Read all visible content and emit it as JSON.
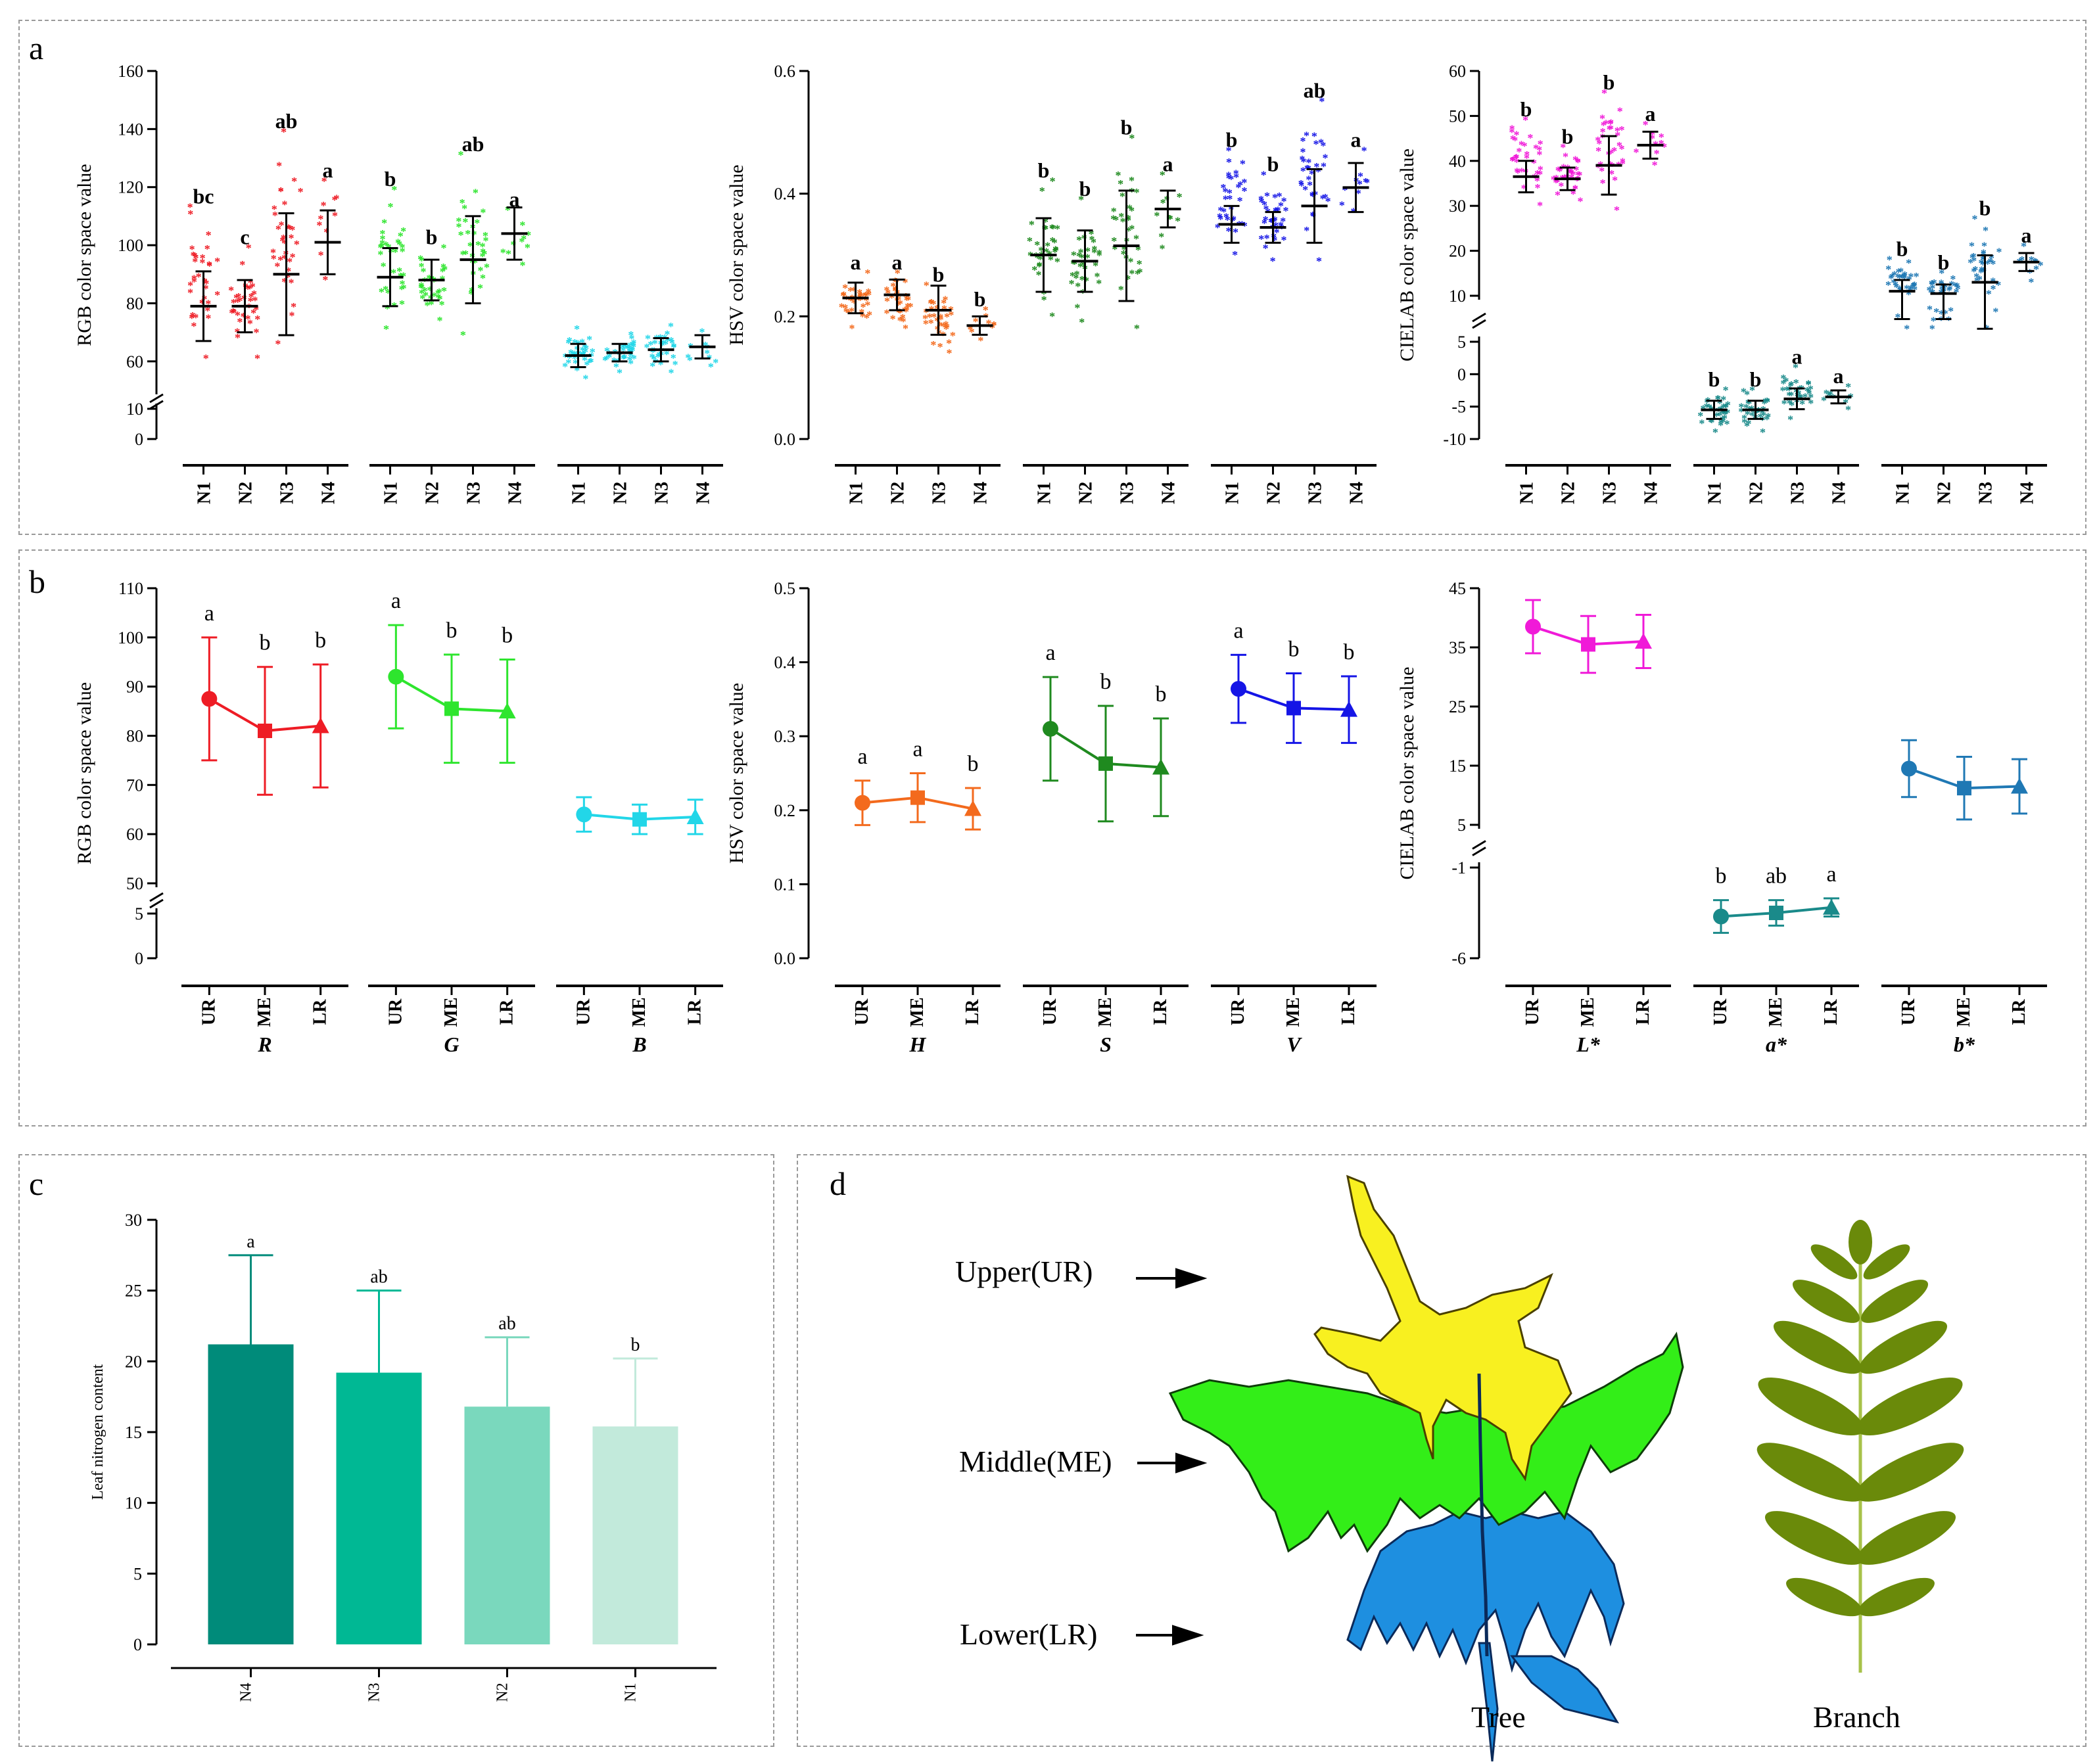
{
  "panels": {
    "a": "a",
    "b": "b",
    "c": "c",
    "d": "d"
  },
  "chart_data": [
    {
      "id": "a1",
      "type": "scatter",
      "ylabel": "RGB color space value",
      "ylim_lower": [
        0,
        10
      ],
      "ylim": [
        50,
        160
      ],
      "yticks_lower": [
        0,
        10
      ],
      "yticks": [
        60,
        80,
        100,
        120,
        140,
        160
      ],
      "categories": [
        "N1",
        "N2",
        "N3",
        "N4"
      ],
      "series": [
        {
          "color": "#ee1c25",
          "means": [
            79,
            79,
            90,
            101
          ],
          "sd": [
            12,
            9,
            21,
            11
          ],
          "ptmin": [
            61,
            61,
            66,
            88
          ],
          "ptmax": [
            113,
            99,
            139,
            122
          ],
          "labels": [
            "bc",
            "c",
            "ab",
            "a"
          ]
        },
        {
          "color": "#2ee52e",
          "means": [
            89,
            88,
            95,
            104
          ],
          "sd": [
            10,
            7,
            15,
            9
          ],
          "ptmin": [
            71,
            74,
            69,
            93
          ],
          "ptmax": [
            119,
            99,
            131,
            112
          ],
          "labels": [
            "b",
            "b",
            "ab",
            "a"
          ]
        },
        {
          "color": "#22d6e8",
          "means": [
            62,
            63,
            64,
            65
          ],
          "sd": [
            4,
            3,
            4,
            4
          ],
          "ptmin": [
            54,
            56,
            56,
            58
          ],
          "ptmax": [
            71,
            69,
            72,
            70
          ],
          "labels": [
            "",
            "",
            "",
            ""
          ]
        }
      ]
    },
    {
      "id": "a2",
      "type": "scatter",
      "ylabel": "HSV color space value",
      "ylim": [
        0,
        0.6
      ],
      "yticks": [
        0.0,
        0.2,
        0.4,
        0.6
      ],
      "categories": [
        "N1",
        "N2",
        "N3",
        "N4"
      ],
      "series": [
        {
          "color": "#f36a1d",
          "means": [
            0.23,
            0.235,
            0.21,
            0.185
          ],
          "sd": [
            0.025,
            0.025,
            0.04,
            0.015
          ],
          "ptmin": [
            0.18,
            0.18,
            0.14,
            0.16
          ],
          "ptmax": [
            0.27,
            0.27,
            0.25,
            0.21
          ],
          "labels": [
            "a",
            "a",
            "b",
            "b"
          ]
        },
        {
          "color": "#1f8a1f",
          "means": [
            0.3,
            0.29,
            0.315,
            0.375
          ],
          "sd": [
            0.06,
            0.05,
            0.09,
            0.03
          ],
          "ptmin": [
            0.2,
            0.19,
            0.18,
            0.31
          ],
          "ptmax": [
            0.42,
            0.39,
            0.49,
            0.43
          ],
          "labels": [
            "b",
            "b",
            "b",
            "a"
          ]
        },
        {
          "color": "#1515e6",
          "means": [
            0.35,
            0.345,
            0.38,
            0.41
          ],
          "sd": [
            0.03,
            0.025,
            0.06,
            0.04
          ],
          "ptmin": [
            0.3,
            0.29,
            0.29,
            0.37
          ],
          "ptmax": [
            0.47,
            0.43,
            0.55,
            0.47
          ],
          "labels": [
            "b",
            "b",
            "ab",
            "a"
          ]
        }
      ]
    },
    {
      "id": "a3",
      "type": "scatter",
      "ylabel": "CIELAB  color space value",
      "ylim_lower": [
        -10,
        5
      ],
      "ylim": [
        10,
        60
      ],
      "yticks_lower": [
        -10,
        -5,
        0,
        5
      ],
      "yticks": [
        10,
        20,
        30,
        40,
        50,
        60
      ],
      "categories": [
        "N1",
        "N2",
        "N3",
        "N4"
      ],
      "series": [
        {
          "color": "#f01ad8",
          "means": [
            36.5,
            36,
            39,
            43.5
          ],
          "sd": [
            3.5,
            2.5,
            6.5,
            3
          ],
          "ptmin": [
            30,
            31,
            29,
            39
          ],
          "ptmax": [
            49,
            43,
            55,
            48
          ],
          "labels": [
            "b",
            "b",
            "b",
            "a"
          ]
        },
        {
          "color": "#1a8a8a",
          "means": [
            -5.5,
            -5.5,
            -3.8,
            -3.5
          ],
          "sd": [
            1.4,
            1.4,
            1.6,
            1
          ],
          "ptmin": [
            -9,
            -9,
            -7,
            -5.5
          ],
          "ptmax": [
            -2.5,
            -2.5,
            1,
            -2
          ],
          "labels": [
            "b",
            "b",
            "a",
            "a"
          ]
        },
        {
          "color": "#1f78b4",
          "means": [
            11,
            10.5,
            13,
            17.5
          ],
          "sd": [
            2.5,
            2,
            6,
            2
          ],
          "ptmin": [
            7,
            7,
            7,
            13
          ],
          "ptmax": [
            18,
            15,
            27,
            21
          ],
          "labels": [
            "b",
            "b",
            "b",
            "a"
          ]
        }
      ]
    },
    {
      "id": "b1",
      "type": "line",
      "ylabel": "RGB color space value",
      "ylim_lower": [
        0,
        5
      ],
      "ylim": [
        50,
        110
      ],
      "yticks_lower": [
        0,
        5
      ],
      "yticks": [
        50,
        60,
        70,
        80,
        90,
        100,
        110
      ],
      "categories": [
        "UR",
        "ME",
        "LR"
      ],
      "series": [
        {
          "name": "R",
          "color": "#ee1c25",
          "values": [
            87.5,
            81,
            82
          ],
          "sd": [
            12.5,
            13,
            12.5
          ],
          "labels": [
            "a",
            "b",
            "b"
          ]
        },
        {
          "name": "G",
          "color": "#2ee52e",
          "values": [
            92,
            85.5,
            85
          ],
          "sd": [
            10.5,
            11,
            10.5
          ],
          "labels": [
            "a",
            "b",
            "b"
          ]
        },
        {
          "name": "B",
          "color": "#22d6e8",
          "values": [
            64,
            63,
            63.5
          ],
          "sd": [
            3.5,
            3,
            3.5
          ],
          "labels": [
            "",
            "",
            ""
          ]
        }
      ]
    },
    {
      "id": "b2",
      "type": "line",
      "ylabel": "HSV color space value",
      "ylim": [
        0,
        0.5
      ],
      "yticks": [
        0.0,
        0.1,
        0.2,
        0.3,
        0.4,
        0.5
      ],
      "categories": [
        "UR",
        "ME",
        "LR"
      ],
      "series": [
        {
          "name": "H",
          "color": "#f36a1d",
          "values": [
            0.21,
            0.217,
            0.202
          ],
          "sd": [
            0.03,
            0.033,
            0.028
          ],
          "labels": [
            "a",
            "a",
            "b"
          ]
        },
        {
          "name": "S",
          "color": "#1f8a1f",
          "values": [
            0.31,
            0.263,
            0.258
          ],
          "sd": [
            0.07,
            0.078,
            0.066
          ],
          "labels": [
            "a",
            "b",
            "b"
          ]
        },
        {
          "name": "V",
          "color": "#1515e6",
          "values": [
            0.364,
            0.338,
            0.336
          ],
          "sd": [
            0.046,
            0.047,
            0.045
          ],
          "labels": [
            "a",
            "b",
            "b"
          ]
        }
      ]
    },
    {
      "id": "b3",
      "type": "line",
      "ylabel": "CIELAB  color space value",
      "ylim_lower": [
        -6,
        -1
      ],
      "ylim": [
        5,
        45
      ],
      "yticks_lower": [
        -6,
        -1
      ],
      "yticks": [
        5,
        15,
        25,
        35,
        45
      ],
      "categories": [
        "UR",
        "ME",
        "LR"
      ],
      "series": [
        {
          "name": "L*",
          "color": "#f01ad8",
          "values": [
            38.5,
            35.5,
            36
          ],
          "sd": [
            4.5,
            4.8,
            4.5
          ],
          "labels": [
            "",
            "",
            ""
          ]
        },
        {
          "name": "a*",
          "color": "#1a8a8a",
          "values": [
            -3.7,
            -3.5,
            -3.2
          ],
          "sd": [
            0.9,
            0.7,
            0.5
          ],
          "labels": [
            "b",
            "ab",
            "a"
          ]
        },
        {
          "name": "b*",
          "color": "#1f78b4",
          "values": [
            14.5,
            11.2,
            11.5
          ],
          "sd": [
            4.8,
            5.3,
            4.6
          ],
          "labels": [
            "",
            "",
            ""
          ]
        }
      ]
    },
    {
      "id": "c",
      "type": "bar",
      "ylabel": "Leaf nitrogen content",
      "ylim": [
        0,
        30
      ],
      "yticks": [
        0,
        5,
        10,
        15,
        20,
        25,
        30
      ],
      "categories": [
        "N4",
        "N3",
        "N2",
        "N1"
      ],
      "values": [
        21.2,
        19.2,
        16.8,
        15.4
      ],
      "sd": [
        6.3,
        5.8,
        4.9,
        4.8
      ],
      "labels": [
        "a",
        "ab",
        "ab",
        "b"
      ],
      "colors": [
        "#008b7a",
        "#00b894",
        "#7ad8bd",
        "#c2eadb"
      ]
    }
  ],
  "diagram": {
    "upper": "Upper(UR)",
    "middle": "Middle(ME)",
    "lower": "Lower(LR)",
    "tree": "Tree",
    "branch": "Branch"
  }
}
